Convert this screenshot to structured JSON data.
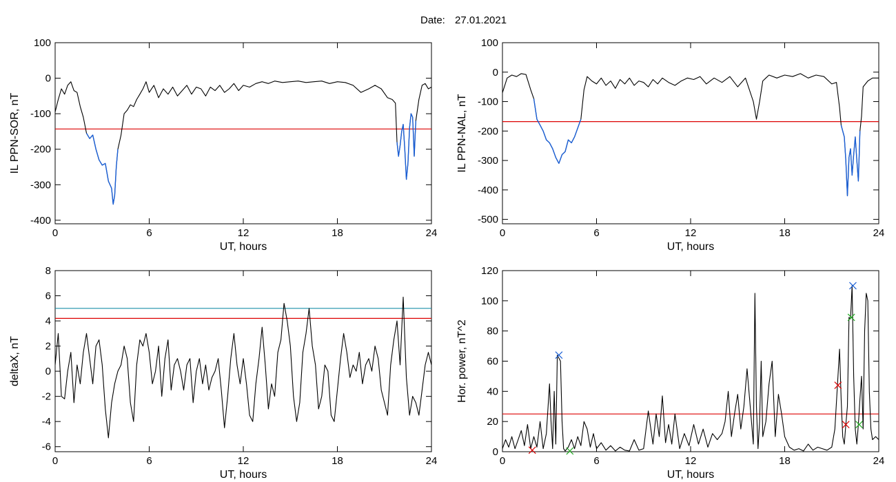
{
  "header": {
    "date_label": "Date:",
    "date_value": "27.01.2021"
  },
  "chart_data": [
    {
      "id": "p1",
      "type": "line",
      "xlabel": "UT, hours",
      "ylabel": "IL PPN-SOR, nT",
      "xlim": [
        0,
        24
      ],
      "ylim": [
        -410,
        100
      ],
      "xticks": [
        0,
        6,
        12,
        18,
        24
      ],
      "xtick_labels": [
        "0",
        "6",
        "12",
        "18",
        "24"
      ],
      "yticks": [
        -400,
        -300,
        -200,
        -100,
        0,
        100
      ],
      "ytick_labels": [
        "-400",
        "-300",
        "-200",
        "-100",
        "0",
        "100"
      ],
      "threshold_lines": [
        {
          "y": -143,
          "color": "#dd0000"
        }
      ],
      "highlight_color": "#1a5fd6",
      "highlight_ranges": [
        [
          1.95,
          4.15
        ],
        [
          21.75,
          23.05
        ]
      ],
      "series": [
        {
          "color": "#000000",
          "x": [
            0,
            0.2,
            0.4,
            0.6,
            0.8,
            1.0,
            1.2,
            1.4,
            1.6,
            1.8,
            2.0,
            2.2,
            2.4,
            2.6,
            2.8,
            3.0,
            3.2,
            3.4,
            3.6,
            3.7,
            3.8,
            3.9,
            4.0,
            4.2,
            4.4,
            4.6,
            4.8,
            5.0,
            5.2,
            5.4,
            5.6,
            5.8,
            6.0,
            6.3,
            6.6,
            6.9,
            7.2,
            7.5,
            7.8,
            8.1,
            8.4,
            8.7,
            9.0,
            9.3,
            9.6,
            9.9,
            10.2,
            10.5,
            10.8,
            11.1,
            11.4,
            11.7,
            12.0,
            12.4,
            12.8,
            13.2,
            13.6,
            14.0,
            14.5,
            15.0,
            15.5,
            16.0,
            16.5,
            17.0,
            17.5,
            18.0,
            18.5,
            19.0,
            19.5,
            20.0,
            20.4,
            20.8,
            21.2,
            21.5,
            21.7,
            21.8,
            21.9,
            22.0,
            22.1,
            22.2,
            22.3,
            22.4,
            22.5,
            22.6,
            22.7,
            22.8,
            22.9,
            23.0,
            23.2,
            23.4,
            23.6,
            23.8,
            24.0
          ],
          "y": [
            -95,
            -60,
            -30,
            -45,
            -20,
            -10,
            -35,
            -40,
            -80,
            -110,
            -155,
            -170,
            -160,
            -200,
            -230,
            -245,
            -240,
            -290,
            -310,
            -355,
            -330,
            -250,
            -200,
            -160,
            -100,
            -90,
            -75,
            -80,
            -60,
            -45,
            -30,
            -10,
            -40,
            -20,
            -55,
            -30,
            -45,
            -25,
            -50,
            -35,
            -20,
            -45,
            -25,
            -30,
            -50,
            -25,
            -35,
            -20,
            -40,
            -30,
            -15,
            -35,
            -20,
            -25,
            -15,
            -10,
            -15,
            -8,
            -12,
            -10,
            -8,
            -12,
            -10,
            -8,
            -15,
            -10,
            -12,
            -20,
            -40,
            -30,
            -20,
            -30,
            -55,
            -60,
            -70,
            -180,
            -220,
            -190,
            -150,
            -130,
            -200,
            -285,
            -240,
            -140,
            -100,
            -110,
            -220,
            -120,
            -60,
            -20,
            -15,
            -30,
            -25
          ]
        }
      ]
    },
    {
      "id": "p2",
      "type": "line",
      "xlabel": "UT, hours",
      "ylabel": "IL PPN-NAL, nT",
      "xlim": [
        0,
        24
      ],
      "ylim": [
        -515,
        100
      ],
      "xticks": [
        0,
        6,
        12,
        18,
        24
      ],
      "xtick_labels": [
        "0",
        "6",
        "12",
        "18",
        "24"
      ],
      "yticks": [
        -500,
        -400,
        -300,
        -200,
        -100,
        0,
        100
      ],
      "ytick_labels": [
        "-500",
        "-400",
        "-300",
        "-200",
        "-100",
        "0",
        "100"
      ],
      "threshold_lines": [
        {
          "y": -168,
          "color": "#dd0000"
        }
      ],
      "highlight_color": "#1a5fd6",
      "highlight_ranges": [
        [
          1.9,
          5.0
        ],
        [
          21.6,
          22.85
        ]
      ],
      "series": [
        {
          "color": "#000000",
          "x": [
            0,
            0.3,
            0.6,
            0.9,
            1.2,
            1.5,
            1.8,
            2.0,
            2.2,
            2.4,
            2.6,
            2.8,
            3.0,
            3.2,
            3.4,
            3.6,
            3.8,
            4.0,
            4.2,
            4.4,
            4.6,
            4.8,
            5.0,
            5.2,
            5.4,
            5.7,
            6.0,
            6.3,
            6.6,
            6.9,
            7.2,
            7.5,
            7.8,
            8.1,
            8.4,
            8.7,
            9.0,
            9.3,
            9.6,
            9.9,
            10.2,
            10.6,
            11.0,
            11.4,
            11.8,
            12.2,
            12.6,
            13.0,
            13.5,
            14.0,
            14.5,
            15.0,
            15.5,
            16.0,
            16.2,
            16.4,
            16.6,
            16.8,
            17.0,
            17.5,
            18.0,
            18.5,
            19.0,
            19.5,
            20.0,
            20.5,
            21.0,
            21.3,
            21.5,
            21.6,
            21.7,
            21.8,
            21.9,
            22.0,
            22.1,
            22.2,
            22.3,
            22.4,
            22.5,
            22.6,
            22.7,
            22.8,
            22.9,
            23.0,
            23.3,
            23.6,
            24.0
          ],
          "y": [
            -70,
            -20,
            -10,
            -15,
            -5,
            -8,
            -60,
            -90,
            -160,
            -180,
            -200,
            -230,
            -240,
            -260,
            -290,
            -310,
            -280,
            -270,
            -230,
            -240,
            -220,
            -190,
            -160,
            -60,
            -15,
            -30,
            -40,
            -20,
            -45,
            -30,
            -55,
            -25,
            -40,
            -20,
            -45,
            -30,
            -35,
            -50,
            -25,
            -40,
            -20,
            -35,
            -45,
            -30,
            -20,
            -25,
            -15,
            -40,
            -20,
            -35,
            -15,
            -50,
            -20,
            -100,
            -160,
            -100,
            -30,
            -20,
            -10,
            -20,
            -10,
            -15,
            -5,
            -20,
            -10,
            -15,
            -40,
            -35,
            -120,
            -180,
            -200,
            -220,
            -300,
            -420,
            -290,
            -260,
            -350,
            -280,
            -220,
            -300,
            -370,
            -200,
            -150,
            -50,
            -30,
            -20,
            -20
          ]
        }
      ]
    },
    {
      "id": "p3",
      "type": "line",
      "xlabel": "UT, hours",
      "ylabel": "deltaX, nT",
      "xlim": [
        0,
        24
      ],
      "ylim": [
        -6.4,
        8
      ],
      "xticks": [
        0,
        6,
        12,
        18,
        24
      ],
      "xtick_labels": [
        "0",
        "6",
        "12",
        "18",
        "24"
      ],
      "yticks": [
        -6,
        -4,
        -2,
        0,
        2,
        4,
        6,
        8
      ],
      "ytick_labels": [
        "-6",
        "-4",
        "-2",
        "0",
        "2",
        "4",
        "6",
        "8"
      ],
      "threshold_lines": [
        {
          "y": 5.0,
          "color": "#1a8fa8"
        },
        {
          "y": 4.2,
          "color": "#dd0000"
        }
      ],
      "series": [
        {
          "color": "#000000",
          "x": [
            0,
            0.2,
            0.4,
            0.6,
            0.8,
            1.0,
            1.2,
            1.4,
            1.6,
            1.8,
            2.0,
            2.2,
            2.4,
            2.6,
            2.8,
            3.0,
            3.2,
            3.4,
            3.6,
            3.8,
            4.0,
            4.2,
            4.4,
            4.6,
            4.8,
            5.0,
            5.2,
            5.4,
            5.6,
            5.8,
            6.0,
            6.2,
            6.4,
            6.6,
            6.8,
            7.0,
            7.2,
            7.4,
            7.6,
            7.8,
            8.0,
            8.2,
            8.4,
            8.6,
            8.8,
            9.0,
            9.2,
            9.4,
            9.6,
            9.8,
            10.0,
            10.2,
            10.4,
            10.6,
            10.8,
            11.0,
            11.2,
            11.4,
            11.6,
            11.8,
            12.0,
            12.2,
            12.4,
            12.6,
            12.8,
            13.0,
            13.2,
            13.4,
            13.6,
            13.8,
            14.0,
            14.2,
            14.4,
            14.6,
            14.8,
            15.0,
            15.2,
            15.4,
            15.6,
            15.8,
            16.0,
            16.2,
            16.4,
            16.6,
            16.8,
            17.0,
            17.2,
            17.4,
            17.6,
            17.8,
            18.0,
            18.2,
            18.4,
            18.6,
            18.8,
            19.0,
            19.2,
            19.4,
            19.6,
            19.8,
            20.0,
            20.2,
            20.4,
            20.6,
            20.8,
            21.0,
            21.2,
            21.4,
            21.6,
            21.8,
            22.0,
            22.2,
            22.4,
            22.6,
            22.8,
            23.0,
            23.2,
            23.4,
            23.6,
            23.8,
            24.0
          ],
          "y": [
            0.5,
            3.0,
            -2.0,
            -2.2,
            0.0,
            1.5,
            -2.5,
            0.5,
            -1.0,
            1.5,
            3.0,
            1.0,
            -1.0,
            2.0,
            2.5,
            0.5,
            -3.0,
            -5.3,
            -2.5,
            -1.0,
            0.0,
            0.5,
            2.0,
            1.0,
            -2.5,
            -4.0,
            0.5,
            2.5,
            2.0,
            3.0,
            1.5,
            -1.0,
            0.0,
            2.0,
            -2.0,
            1.0,
            2.5,
            -1.5,
            0.5,
            1.0,
            0.0,
            -1.5,
            0.5,
            1.0,
            -2.5,
            0.0,
            1.0,
            -1.0,
            0.5,
            -1.5,
            -0.5,
            0.0,
            1.0,
            -1.5,
            -4.5,
            -2.0,
            1.0,
            3.0,
            0.5,
            -1.0,
            1.0,
            -1.0,
            -3.5,
            -4.0,
            -1.0,
            1.0,
            3.5,
            0.5,
            -3.0,
            -1.0,
            -2.0,
            1.5,
            2.5,
            5.4,
            4.0,
            2.0,
            -2.0,
            -4.0,
            -2.5,
            1.5,
            3.0,
            5.0,
            2.0,
            0.5,
            -3.0,
            -2.0,
            0.5,
            0.0,
            -3.5,
            -4.0,
            -1.5,
            1.0,
            3.0,
            1.5,
            -0.5,
            0.5,
            0.0,
            1.5,
            -1.0,
            0.5,
            1.0,
            0.0,
            2.0,
            1.0,
            -1.5,
            -2.5,
            -3.5,
            0.5,
            2.5,
            4.0,
            0.5,
            5.9,
            -0.5,
            -3.5,
            -2.0,
            -2.5,
            -3.5,
            -1.5,
            0.5,
            1.5,
            0.5
          ]
        }
      ]
    },
    {
      "id": "p4",
      "type": "line",
      "xlabel": "UT, hours",
      "ylabel": "Hor. power, nT^2",
      "xlim": [
        0,
        24
      ],
      "ylim": [
        0,
        120
      ],
      "xticks": [
        0,
        6,
        12,
        18,
        24
      ],
      "xtick_labels": [
        "0",
        "6",
        "12",
        "18",
        "24"
      ],
      "yticks": [
        0,
        20,
        40,
        60,
        80,
        100,
        120
      ],
      "ytick_labels": [
        "0",
        "20",
        "40",
        "60",
        "80",
        "100",
        "120"
      ],
      "threshold_lines": [
        {
          "y": 25,
          "color": "#dd0000"
        }
      ],
      "markers": [
        {
          "x": 1.9,
          "y": 1,
          "color": "#dd0000"
        },
        {
          "x": 3.6,
          "y": 64,
          "color": "#1a5fd6"
        },
        {
          "x": 4.3,
          "y": 0.5,
          "color": "#22aa22"
        },
        {
          "x": 21.4,
          "y": 44,
          "color": "#dd0000"
        },
        {
          "x": 21.9,
          "y": 18,
          "color": "#dd0000"
        },
        {
          "x": 22.25,
          "y": 89,
          "color": "#22aa22"
        },
        {
          "x": 22.35,
          "y": 110,
          "color": "#1a5fd6"
        },
        {
          "x": 22.75,
          "y": 18,
          "color": "#22aa22"
        }
      ],
      "series": [
        {
          "color": "#000000",
          "x": [
            0,
            0.2,
            0.4,
            0.6,
            0.8,
            1.0,
            1.2,
            1.4,
            1.6,
            1.8,
            2.0,
            2.2,
            2.4,
            2.6,
            2.8,
            3.0,
            3.1,
            3.2,
            3.3,
            3.4,
            3.5,
            3.6,
            3.7,
            3.8,
            3.9,
            4.0,
            4.2,
            4.4,
            4.6,
            4.8,
            5.0,
            5.2,
            5.4,
            5.6,
            5.8,
            6.0,
            6.3,
            6.6,
            6.9,
            7.2,
            7.5,
            7.8,
            8.1,
            8.4,
            8.7,
            9.0,
            9.3,
            9.6,
            9.8,
            10.0,
            10.2,
            10.4,
            10.6,
            10.8,
            11.0,
            11.3,
            11.6,
            11.9,
            12.2,
            12.5,
            12.8,
            13.1,
            13.4,
            13.7,
            14.0,
            14.2,
            14.4,
            14.6,
            14.8,
            15.0,
            15.2,
            15.4,
            15.6,
            15.8,
            16.0,
            16.1,
            16.2,
            16.3,
            16.4,
            16.5,
            16.6,
            16.8,
            17.0,
            17.2,
            17.4,
            17.6,
            17.8,
            18.0,
            18.3,
            18.6,
            18.9,
            19.2,
            19.5,
            19.8,
            20.1,
            20.4,
            20.7,
            21.0,
            21.2,
            21.4,
            21.5,
            21.6,
            21.7,
            21.8,
            21.9,
            22.0,
            22.1,
            22.2,
            22.3,
            22.4,
            22.5,
            22.6,
            22.7,
            22.8,
            22.9,
            23.0,
            23.1,
            23.2,
            23.3,
            23.4,
            23.5,
            23.6,
            23.8,
            24.0
          ],
          "y": [
            2,
            8,
            3,
            10,
            2,
            8,
            14,
            4,
            18,
            2,
            10,
            3,
            20,
            2,
            12,
            45,
            20,
            2,
            40,
            5,
            64,
            62,
            60,
            20,
            2,
            0.5,
            3,
            8,
            2,
            10,
            4,
            20,
            15,
            3,
            12,
            2,
            6,
            1,
            4,
            0.5,
            3,
            1,
            0.5,
            8,
            1,
            2,
            27,
            5,
            25,
            10,
            37,
            6,
            18,
            5,
            25,
            2,
            12,
            4,
            18,
            5,
            15,
            3,
            12,
            8,
            12,
            20,
            40,
            10,
            25,
            38,
            15,
            30,
            55,
            30,
            5,
            105,
            30,
            2,
            20,
            60,
            10,
            20,
            45,
            60,
            10,
            38,
            25,
            10,
            3,
            1,
            2,
            0.5,
            5,
            1,
            3,
            2,
            1,
            3,
            15,
            50,
            68,
            35,
            10,
            5,
            18,
            30,
            89,
            88,
            110,
            50,
            15,
            5,
            18,
            35,
            50,
            15,
            80,
            105,
            100,
            40,
            15,
            8,
            10,
            8
          ]
        }
      ]
    }
  ]
}
